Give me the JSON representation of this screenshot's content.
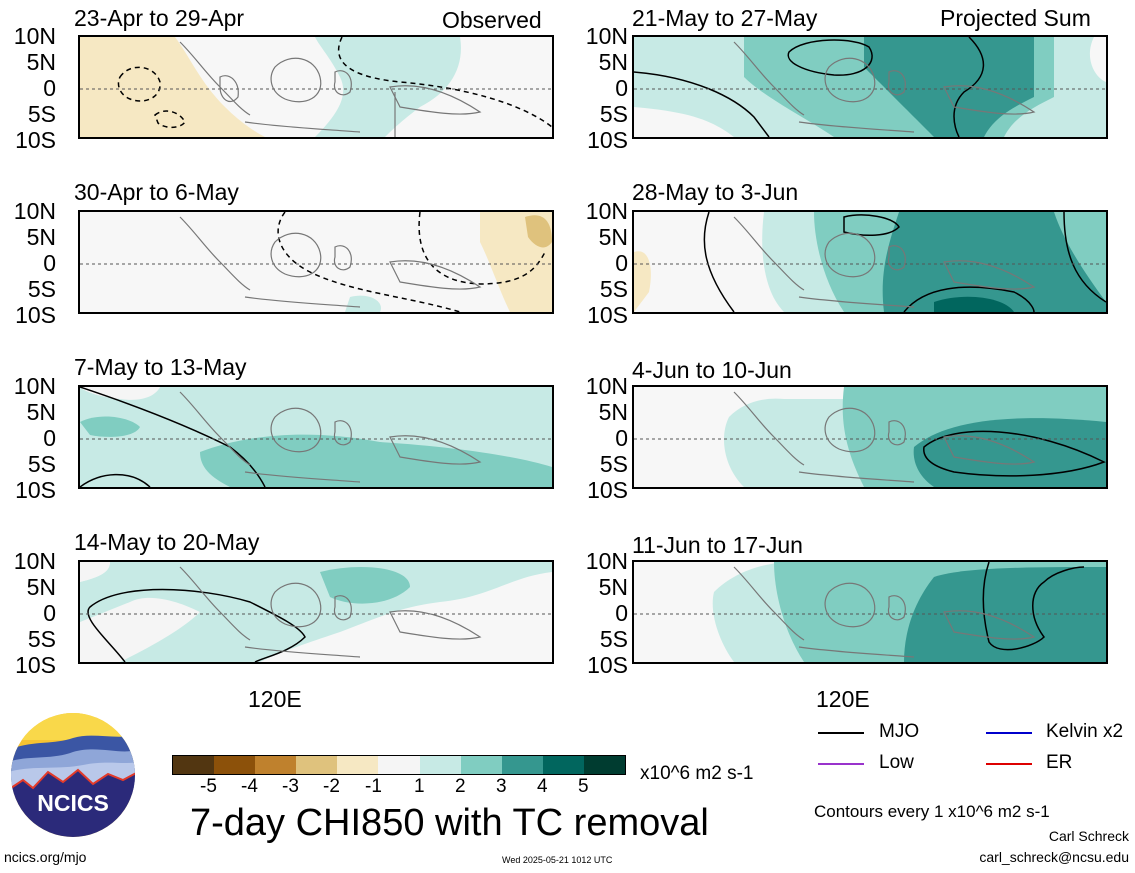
{
  "panels": [
    {
      "title": "23-Apr to 29-Apr",
      "label": "Observed"
    },
    {
      "title": "30-Apr to 6-May",
      "label": ""
    },
    {
      "title": "7-May to 13-May",
      "label": ""
    },
    {
      "title": "14-May to 20-May",
      "label": ""
    },
    {
      "title": "21-May to 27-May",
      "label": "Projected Sum"
    },
    {
      "title": "28-May to 3-Jun",
      "label": ""
    },
    {
      "title": "4-Jun to 10-Jun",
      "label": ""
    },
    {
      "title": "11-Jun to 17-Jun",
      "label": ""
    }
  ],
  "yticks": [
    "10N",
    "5N",
    "0",
    "5S",
    "10S"
  ],
  "xtick": "120E",
  "colorbar": {
    "ticks": [
      "-5",
      "-4",
      "-3",
      "-2",
      "-1",
      "1",
      "2",
      "3",
      "4",
      "5"
    ],
    "units": "x10^6 m2 s-1",
    "colors": [
      "#523611",
      "#8c510a",
      "#bf812d",
      "#dfc27d",
      "#f6e8c3",
      "#f5f5f5",
      "#c7eae5",
      "#80cdc1",
      "#35978f",
      "#01665e",
      "#003c30"
    ]
  },
  "main_title": "7-day CHI850 with TC removal",
  "legend": [
    {
      "label": "MJO",
      "color": "#000000"
    },
    {
      "label": "Kelvin x2",
      "color": "#0000cc"
    },
    {
      "label": "Low",
      "color": "#9933cc"
    },
    {
      "label": "ER",
      "color": "#dd0000"
    }
  ],
  "contours_note": "Contours every 1 x10^6 m2 s-1",
  "author": "Carl Schreck",
  "email": "carl_schreck@ncsu.edu",
  "site": "ncics.org/mjo",
  "timestamp": "Wed 2025-05-21 1012 UTC",
  "logo_text": "NCICS"
}
